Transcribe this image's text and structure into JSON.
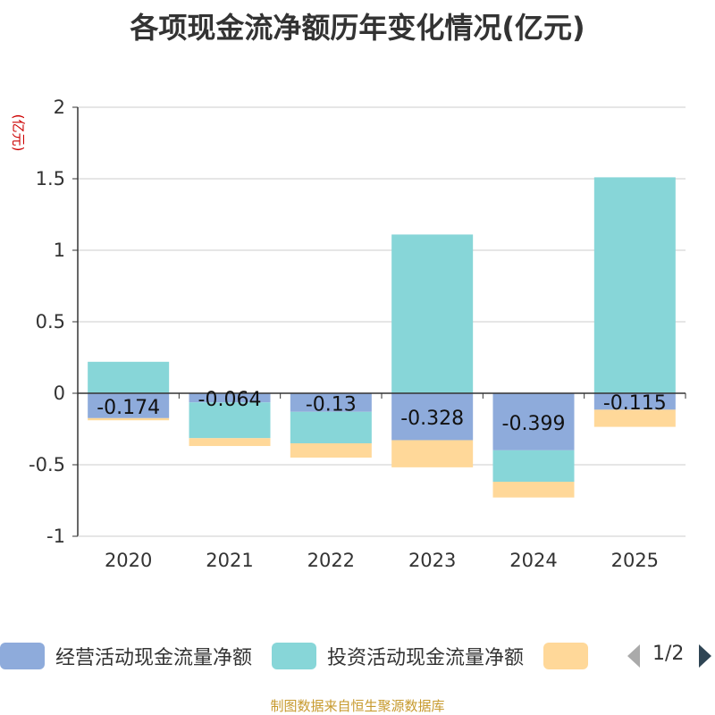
{
  "chart_data": {
    "type": "bar",
    "stacked": true,
    "title": "各项现金流净额历年变化情况(亿元)",
    "ylabel": "(亿元)",
    "xlabel": "",
    "ylim": [
      -1,
      2
    ],
    "yticks": [
      -1,
      -0.5,
      0,
      0.5,
      1,
      1.5,
      2
    ],
    "ytick_labels": [
      "-1",
      "-0.5",
      "0",
      "0.5",
      "1",
      "1.5",
      "2"
    ],
    "grid": true,
    "categories": [
      "2020",
      "2021",
      "2022",
      "2023",
      "2024",
      "2025"
    ],
    "series": [
      {
        "name": "经营活动现金流量净额",
        "color": "#8eabdb",
        "values": [
          -0.174,
          -0.064,
          -0.13,
          -0.328,
          -0.399,
          -0.115
        ]
      },
      {
        "name": "投资活动现金流量净额",
        "color": "#87d6d8",
        "values": [
          0.22,
          -0.25,
          -0.22,
          1.11,
          -0.22,
          1.51
        ]
      },
      {
        "name": "",
        "color": "#ffd899",
        "values": [
          -0.015,
          -0.055,
          -0.1,
          -0.19,
          -0.11,
          -0.12
        ]
      }
    ],
    "data_labels": [
      "-0.174",
      "-0.064",
      "-0.13",
      "-0.328",
      "-0.399",
      "-0.115"
    ]
  },
  "legend": {
    "page": "1/2"
  },
  "source_note": "制图数据来自恒生聚源数据库"
}
